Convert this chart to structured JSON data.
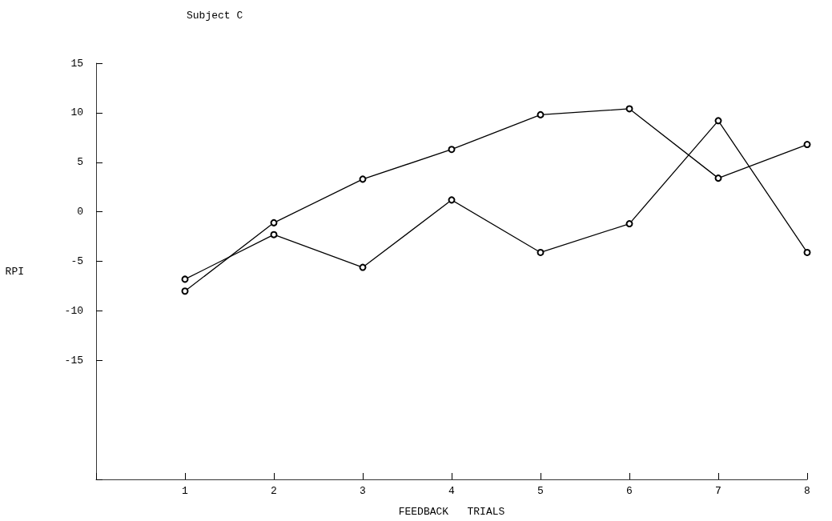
{
  "chart_data": {
    "type": "line",
    "title": "Subject C",
    "xlabel": "FEEDBACK   TRIALS",
    "ylabel": "RPI",
    "x": [
      1,
      2,
      3,
      4,
      5,
      6,
      7,
      8
    ],
    "series": [
      {
        "color": "#000000",
        "marker": "circle",
        "values": [
          -8.0,
          -1.1,
          3.3,
          6.3,
          9.8,
          10.4,
          3.4,
          6.8
        ]
      },
      {
        "color": "#000000",
        "marker": "circle",
        "values": [
          -6.8,
          -2.3,
          -5.6,
          1.2,
          -4.1,
          -1.2,
          9.2,
          -4.1
        ]
      }
    ],
    "xlim": [
      0,
      8
    ],
    "xticks": [
      {
        "value": 0,
        "label": null
      },
      1,
      2,
      3,
      4,
      5,
      6,
      7,
      8
    ],
    "ylim": [
      -27,
      15
    ],
    "yticks": [
      15,
      10,
      5,
      0,
      -5,
      -10,
      -15,
      {
        "value": -27,
        "label": null
      }
    ],
    "grid": false,
    "line_style": "solid"
  }
}
